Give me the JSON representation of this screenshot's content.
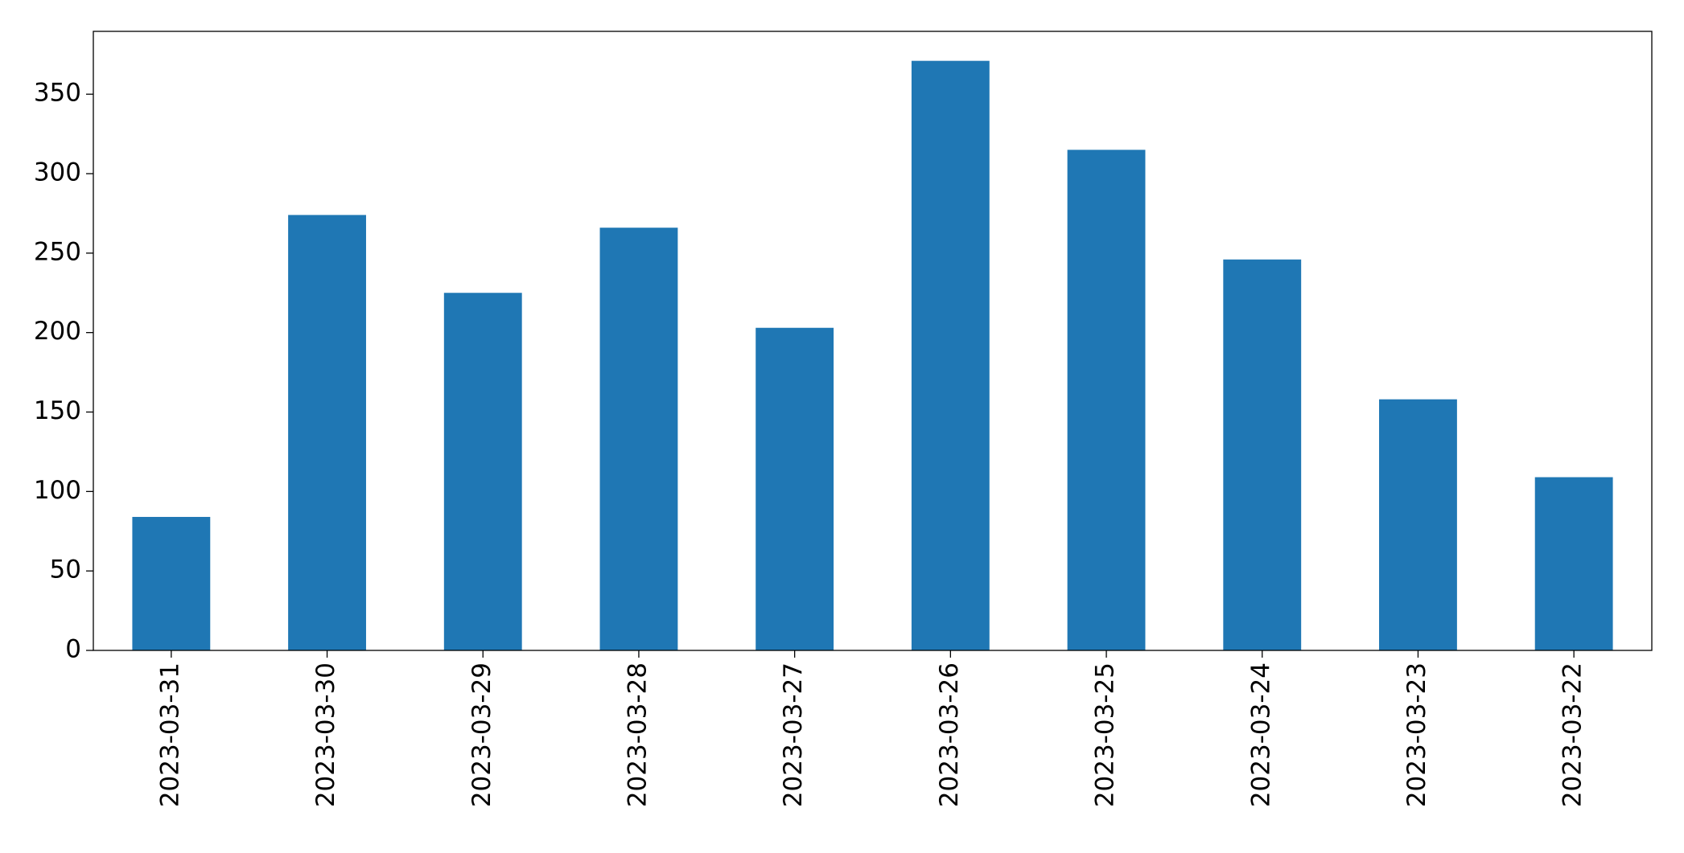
{
  "chart_data": {
    "type": "bar",
    "categories": [
      "2023-03-31",
      "2023-03-30",
      "2023-03-29",
      "2023-03-28",
      "2023-03-27",
      "2023-03-26",
      "2023-03-25",
      "2023-03-24",
      "2023-03-23",
      "2023-03-22"
    ],
    "values": [
      84,
      274,
      225,
      266,
      203,
      371,
      315,
      246,
      158,
      109
    ],
    "color": "#1f77b4",
    "ylim": [
      0,
      389.55
    ],
    "yticks": [
      0,
      50,
      100,
      150,
      200,
      250,
      300,
      350
    ],
    "grid": false
  }
}
